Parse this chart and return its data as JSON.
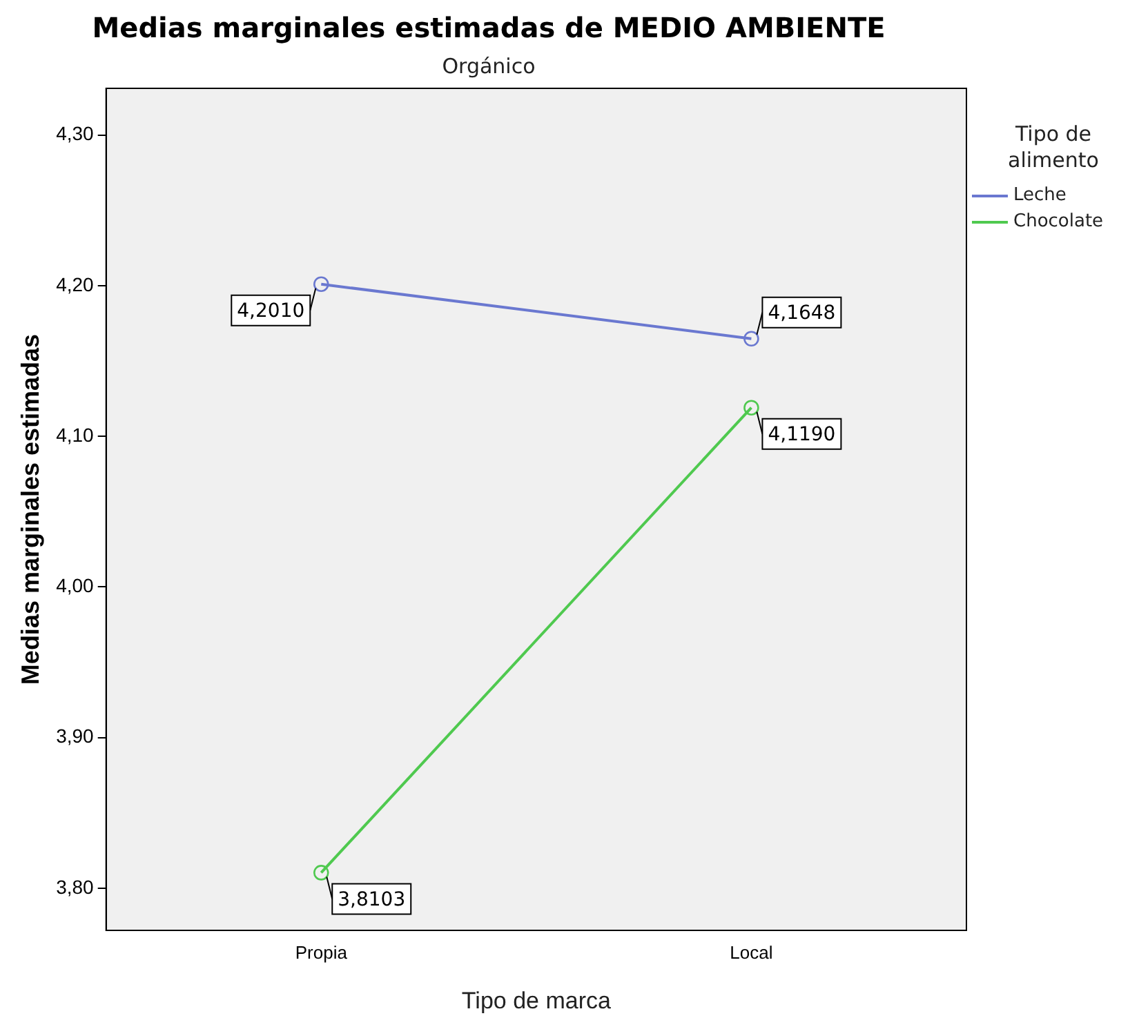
{
  "chart_data": {
    "type": "line",
    "title": "Medias marginales estimadas de MEDIO AMBIENTE",
    "subtitle": "Orgánico",
    "xlabel": "Tipo de marca",
    "ylabel": "Medias marginales estimadas",
    "legend_title": "Tipo de alimento",
    "categories": [
      "Propia",
      "Local"
    ],
    "series": [
      {
        "name": "Leche",
        "color": "#6a78d0",
        "values": [
          4.201,
          4.1648
        ],
        "value_labels": [
          "4,2010",
          "4,1648"
        ]
      },
      {
        "name": "Chocolate",
        "color": "#4fc94f",
        "values": [
          3.8103,
          4.119
        ],
        "value_labels": [
          "3,8103",
          "4,1190"
        ]
      }
    ],
    "ylim": [
      3.772,
      4.331
    ],
    "yticks": [
      {
        "value": 3.8,
        "label": "3,80"
      },
      {
        "value": 3.9,
        "label": "3,90"
      },
      {
        "value": 4.0,
        "label": "4,00"
      },
      {
        "value": 4.1,
        "label": "4,10"
      },
      {
        "value": 4.2,
        "label": "4,20"
      },
      {
        "value": 4.3,
        "label": "4,30"
      }
    ],
    "grid": false,
    "legend": "right",
    "marker": "circle",
    "line_style": "solid"
  }
}
